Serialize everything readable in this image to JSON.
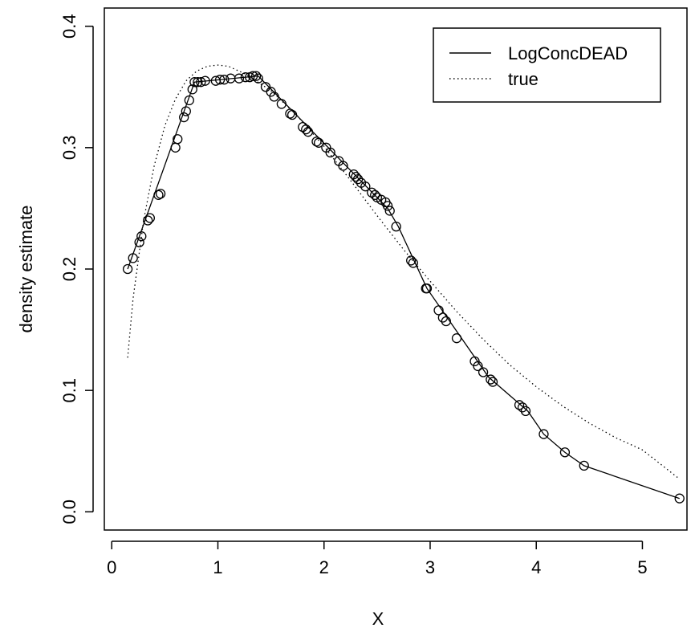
{
  "chart_data": {
    "type": "line",
    "title": "",
    "xlabel": "X",
    "ylabel": "density estimate",
    "xlim": [
      -0.07,
      5.42
    ],
    "ylim": [
      -0.015,
      0.415
    ],
    "x_ticks": [
      0,
      1,
      2,
      3,
      4,
      5
    ],
    "x_tick_labels": [
      "0",
      "1",
      "2",
      "3",
      "4",
      "5"
    ],
    "y_ticks": [
      0.0,
      0.1,
      0.2,
      0.3,
      0.4
    ],
    "y_tick_labels": [
      "0.0",
      "0.1",
      "0.2",
      "0.3",
      "0.4"
    ],
    "grid": false,
    "legend": {
      "position": "top-right",
      "entries": [
        {
          "label": "LogConcDEAD",
          "style": "solid"
        },
        {
          "label": "true",
          "style": "dotted"
        }
      ]
    },
    "series": [
      {
        "name": "LogConcDEAD",
        "style": "solid",
        "x": [
          0.15,
          0.78,
          1.38,
          2.6,
          2.7,
          2.97,
          3.55,
          3.92,
          4.07,
          4.27,
          4.45,
          5.35
        ],
        "y": [
          0.2,
          0.354,
          0.359,
          0.25,
          0.235,
          0.184,
          0.111,
          0.083,
          0.064,
          0.049,
          0.038,
          0.011
        ]
      },
      {
        "name": "true",
        "style": "dotted",
        "x": [
          0.15,
          0.2,
          0.3,
          0.4,
          0.5,
          0.6,
          0.7,
          0.8,
          0.9,
          1.0,
          1.1,
          1.25,
          1.5,
          1.75,
          2.0,
          2.25,
          2.5,
          2.75,
          3.0,
          3.25,
          3.5,
          3.75,
          4.0,
          4.25,
          4.5,
          4.75,
          5.0,
          5.35
        ],
        "y": [
          0.127,
          0.175,
          0.24,
          0.285,
          0.318,
          0.34,
          0.355,
          0.363,
          0.367,
          0.368,
          0.367,
          0.361,
          0.347,
          0.326,
          0.301,
          0.273,
          0.244,
          0.216,
          0.19,
          0.165,
          0.142,
          0.121,
          0.103,
          0.087,
          0.073,
          0.061,
          0.051,
          0.027
        ]
      },
      {
        "name": "",
        "style": "points",
        "x": [
          0.15,
          0.2,
          0.26,
          0.28,
          0.34,
          0.36,
          0.44,
          0.46,
          0.6,
          0.62,
          0.68,
          0.7,
          0.73,
          0.76,
          0.78,
          0.81,
          0.84,
          0.88,
          0.98,
          1.02,
          1.06,
          1.12,
          1.2,
          1.26,
          1.3,
          1.33,
          1.36,
          1.38,
          1.45,
          1.5,
          1.53,
          1.6,
          1.68,
          1.7,
          1.8,
          1.83,
          1.85,
          1.93,
          1.95,
          2.02,
          2.06,
          2.14,
          2.18,
          2.28,
          2.3,
          2.32,
          2.35,
          2.39,
          2.45,
          2.48,
          2.5,
          2.54,
          2.58,
          2.6,
          2.62,
          2.68,
          2.82,
          2.84,
          2.96,
          2.97,
          3.08,
          3.12,
          3.15,
          3.25,
          3.42,
          3.45,
          3.5,
          3.57,
          3.59,
          3.84,
          3.87,
          3.9,
          4.07,
          4.27,
          4.45,
          5.35
        ],
        "y": [
          0.2,
          0.209,
          0.222,
          0.227,
          0.24,
          0.242,
          0.261,
          0.262,
          0.3,
          0.307,
          0.325,
          0.33,
          0.339,
          0.348,
          0.354,
          0.354,
          0.354,
          0.355,
          0.355,
          0.356,
          0.356,
          0.357,
          0.357,
          0.358,
          0.358,
          0.359,
          0.359,
          0.357,
          0.35,
          0.346,
          0.342,
          0.336,
          0.328,
          0.327,
          0.317,
          0.315,
          0.313,
          0.305,
          0.304,
          0.3,
          0.296,
          0.289,
          0.285,
          0.278,
          0.276,
          0.274,
          0.271,
          0.268,
          0.263,
          0.261,
          0.259,
          0.257,
          0.255,
          0.252,
          0.248,
          0.235,
          0.207,
          0.205,
          0.184,
          0.184,
          0.166,
          0.16,
          0.157,
          0.143,
          0.124,
          0.12,
          0.115,
          0.109,
          0.107,
          0.088,
          0.086,
          0.083,
          0.064,
          0.049,
          0.038,
          0.011
        ]
      }
    ]
  }
}
